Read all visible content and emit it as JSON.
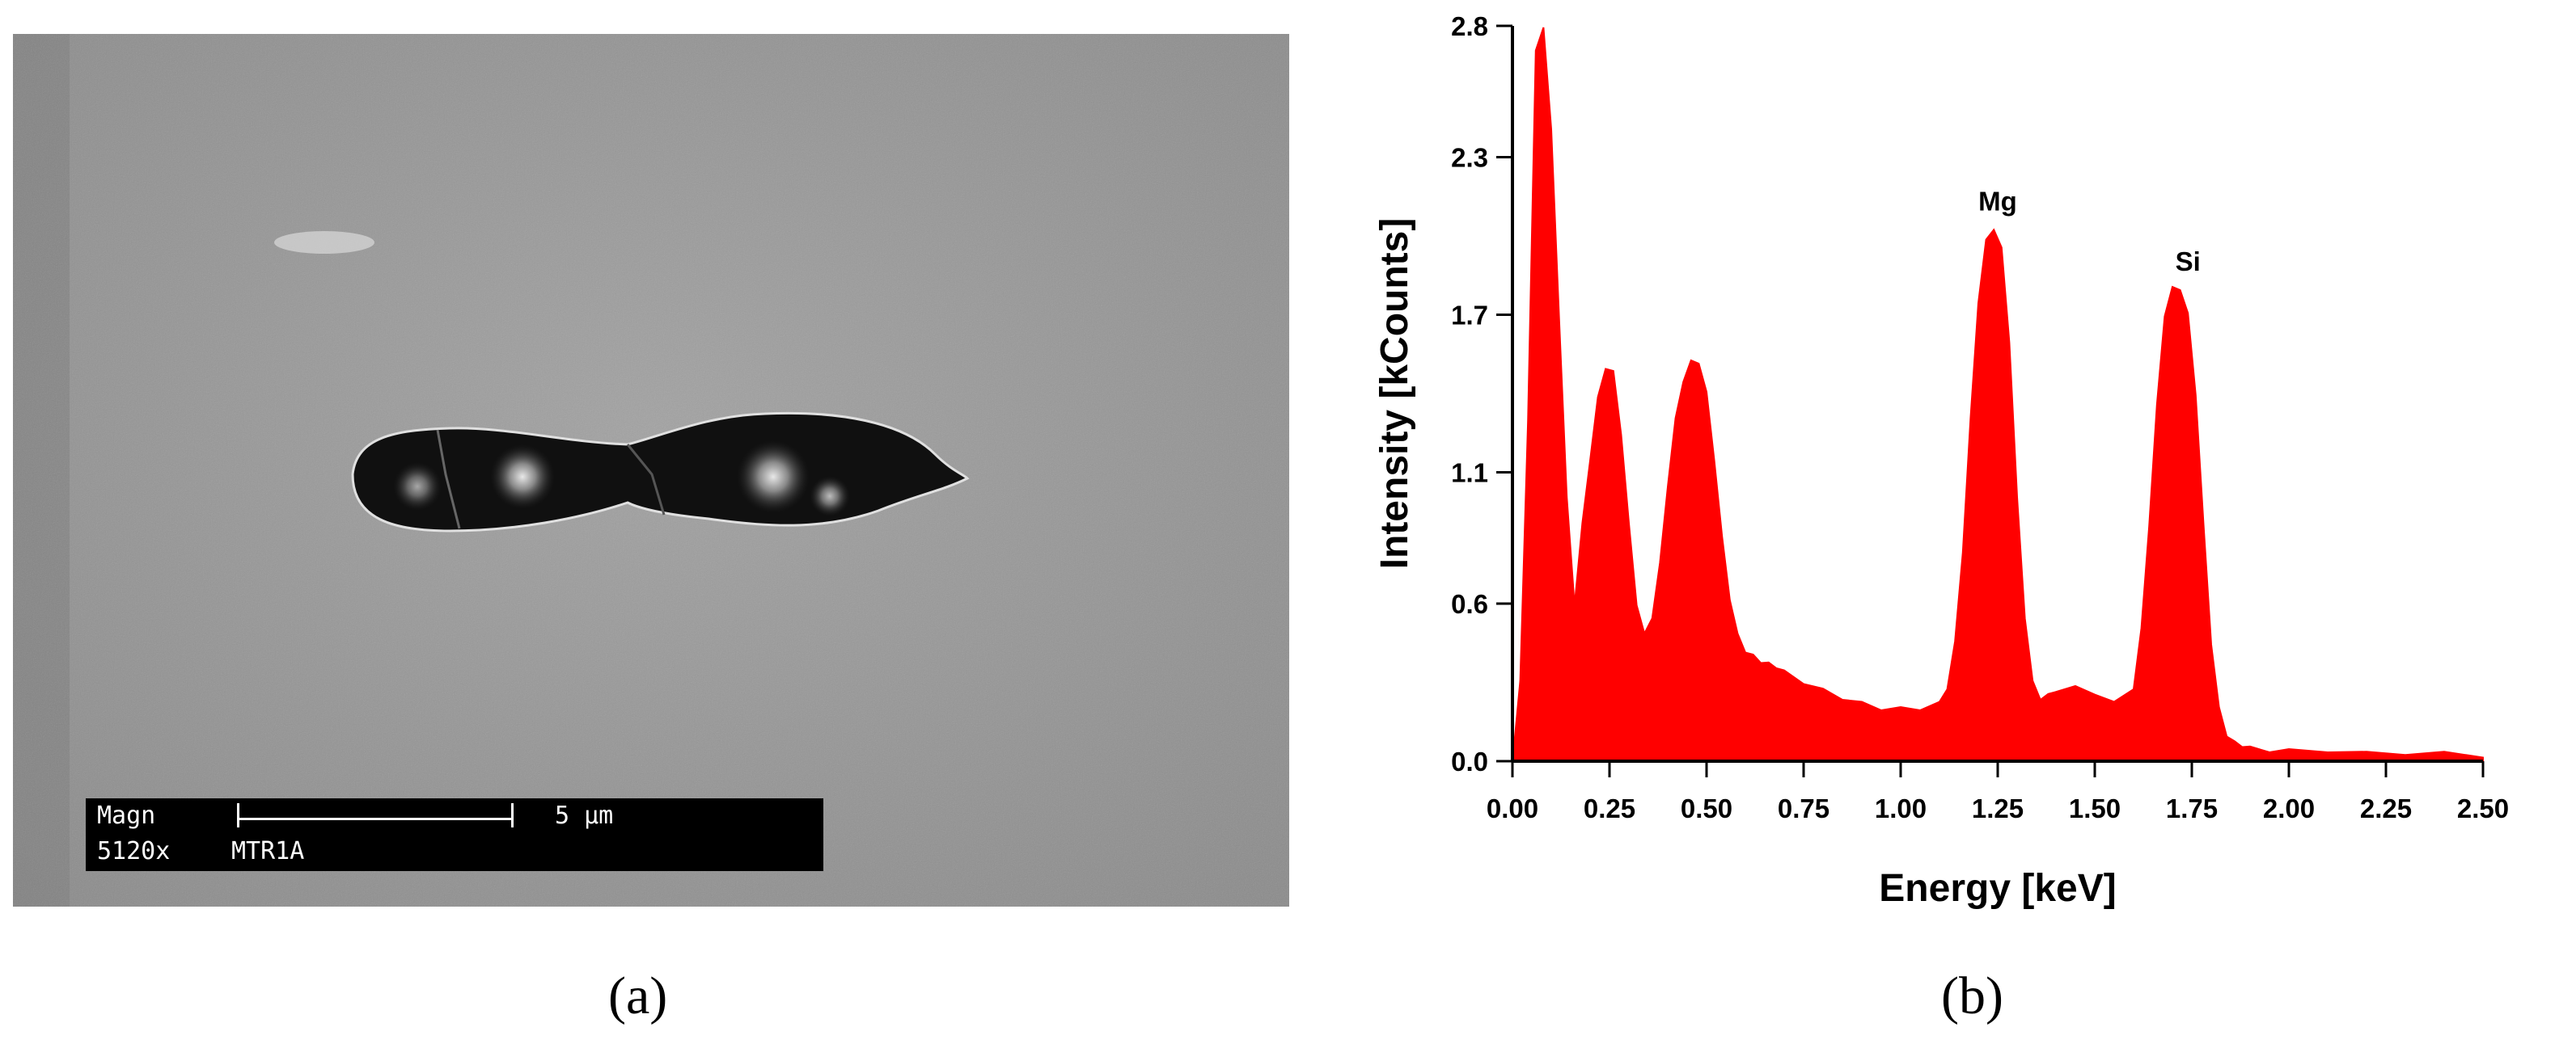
{
  "sem_image": {
    "magnification_label": "Magn",
    "magnification_value": "5120x",
    "scale_bar_label": "5 µm",
    "sample_id": "MTR1A"
  },
  "panel_labels": {
    "a": "(a)",
    "b": "(b)"
  },
  "chart_data": {
    "type": "area",
    "title": "",
    "xlabel": "Energy [keV]",
    "ylabel": "Intensity [kCounts]",
    "xlim": [
      0,
      2.5
    ],
    "ylim": [
      0,
      2.8
    ],
    "xticks": [
      "0.00",
      "0.25",
      "0.50",
      "0.75",
      "1.00",
      "1.25",
      "1.50",
      "1.75",
      "2.00",
      "2.25",
      "2.50"
    ],
    "yticks": [
      "0.0",
      "0.6",
      "1.1",
      "1.7",
      "2.3",
      "2.8"
    ],
    "grid": false,
    "fill_color": "#ff0000",
    "series": [
      {
        "x": [
          0.0,
          0.02,
          0.04,
          0.06,
          0.08,
          0.1,
          0.12,
          0.14,
          0.16,
          0.18,
          0.2,
          0.22,
          0.24,
          0.26,
          0.28,
          0.3,
          0.32,
          0.34,
          0.36,
          0.38,
          0.4,
          0.42,
          0.44,
          0.46,
          0.48,
          0.5,
          0.52,
          0.54,
          0.56,
          0.58,
          0.6,
          0.62,
          0.64,
          0.66,
          0.68,
          0.7,
          0.75,
          0.8,
          0.85,
          0.9,
          0.95,
          1.0,
          1.05,
          1.1,
          1.12,
          1.14,
          1.16,
          1.18,
          1.2,
          1.22,
          1.24,
          1.26,
          1.28,
          1.3,
          1.32,
          1.34,
          1.36,
          1.38,
          1.4,
          1.45,
          1.5,
          1.55,
          1.6,
          1.62,
          1.64,
          1.66,
          1.68,
          1.7,
          1.72,
          1.74,
          1.76,
          1.78,
          1.8,
          1.82,
          1.84,
          1.86,
          1.88,
          1.9,
          1.95,
          2.0,
          2.1,
          2.2,
          2.3,
          2.4,
          2.5
        ],
        "y": [
          0.0,
          0.3,
          1.3,
          2.7,
          2.8,
          2.4,
          1.7,
          1.0,
          0.6,
          0.9,
          1.15,
          1.38,
          1.5,
          1.48,
          1.25,
          0.9,
          0.6,
          0.48,
          0.55,
          0.75,
          1.05,
          1.3,
          1.45,
          1.52,
          1.52,
          1.4,
          1.15,
          0.85,
          0.62,
          0.48,
          0.42,
          0.4,
          0.38,
          0.37,
          0.36,
          0.34,
          0.3,
          0.27,
          0.24,
          0.22,
          0.2,
          0.2,
          0.2,
          0.22,
          0.28,
          0.45,
          0.8,
          1.3,
          1.75,
          1.98,
          2.03,
          1.95,
          1.6,
          1.0,
          0.55,
          0.3,
          0.24,
          0.25,
          0.27,
          0.28,
          0.26,
          0.22,
          0.28,
          0.5,
          0.9,
          1.35,
          1.7,
          1.8,
          1.8,
          1.7,
          1.4,
          0.9,
          0.45,
          0.2,
          0.1,
          0.07,
          0.06,
          0.05,
          0.04,
          0.04,
          0.04,
          0.03,
          0.03,
          0.03,
          0.02
        ]
      }
    ],
    "annotations": [
      {
        "text": "Mg",
        "x": 1.25,
        "y": 2.03
      },
      {
        "text": "Si",
        "x": 1.74,
        "y": 1.8
      }
    ]
  }
}
